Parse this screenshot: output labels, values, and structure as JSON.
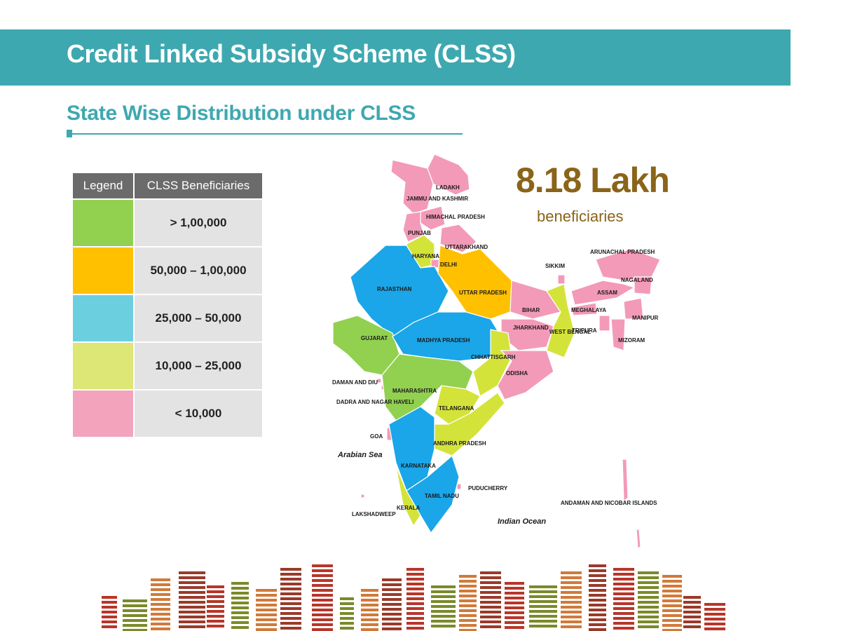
{
  "header": {
    "title": "Credit Linked Subsidy Scheme (CLSS)",
    "subtitle": "State Wise Distribution under CLSS",
    "banner_color": "#3ea8b0"
  },
  "legend": {
    "headers": [
      "Legend",
      "CLSS Beneficiaries"
    ],
    "rows": [
      {
        "color": "#92d050",
        "label": ">  1,00,000"
      },
      {
        "color": "#ffc000",
        "label": "50,000 – 1,00,000"
      },
      {
        "color": "#6ccfe0",
        "label": "25,000 – 50,000"
      },
      {
        "color": "#dce775",
        "label": "10,000 – 25,000"
      },
      {
        "color": "#f4a3bd",
        "label": "< 10,000"
      }
    ]
  },
  "summary": {
    "total": "8.18 Lakh",
    "unit": "beneficiaries"
  },
  "map": {
    "category_colors": {
      "gt_100000": "#92d050",
      "50000_100000": "#ffc000",
      "25000_50000": "#1aa6e8",
      "10000_25000": "#d4e33a",
      "lt_10000": "#f39ab8"
    },
    "regions": [
      {
        "id": "ladakh",
        "label": "LADAKH",
        "category": "lt_10000"
      },
      {
        "id": "jammu-kashmir",
        "label": "JAMMU AND KASHMIR",
        "category": "lt_10000"
      },
      {
        "id": "himachal",
        "label": "HIMACHAL PRADESH",
        "category": "lt_10000"
      },
      {
        "id": "punjab",
        "label": "PUNJAB",
        "category": "lt_10000"
      },
      {
        "id": "uttarakhand",
        "label": "UTTARAKHAND",
        "category": "lt_10000"
      },
      {
        "id": "haryana",
        "label": "HARYANA",
        "category": "10000_25000"
      },
      {
        "id": "delhi",
        "label": "DELHI",
        "category": "lt_10000"
      },
      {
        "id": "rajasthan",
        "label": "RAJASTHAN",
        "category": "25000_50000"
      },
      {
        "id": "uttar-pradesh",
        "label": "UTTAR PRADESH",
        "category": "50000_100000"
      },
      {
        "id": "bihar",
        "label": "BIHAR",
        "category": "lt_10000"
      },
      {
        "id": "sikkim",
        "label": "SIKKIM",
        "category": "lt_10000"
      },
      {
        "id": "arunachal",
        "label": "ARUNACHAL PRADESH",
        "category": "lt_10000"
      },
      {
        "id": "nagaland",
        "label": "NAGALAND",
        "category": "lt_10000"
      },
      {
        "id": "assam",
        "label": "ASSAM",
        "category": "lt_10000"
      },
      {
        "id": "meghalaya",
        "label": "MEGHALAYA",
        "category": "lt_10000"
      },
      {
        "id": "manipur",
        "label": "MANIPUR",
        "category": "lt_10000"
      },
      {
        "id": "tripura",
        "label": "TRIPURA",
        "category": "lt_10000"
      },
      {
        "id": "mizoram",
        "label": "MIZORAM",
        "category": "lt_10000"
      },
      {
        "id": "jharkhand",
        "label": "JHARKHAND",
        "category": "lt_10000"
      },
      {
        "id": "west-bengal",
        "label": "WEST BENGAL",
        "category": "10000_25000"
      },
      {
        "id": "gujarat",
        "label": "GUJARAT",
        "category": "gt_100000"
      },
      {
        "id": "madhya-pradesh",
        "label": "MADHYA  PRADESH",
        "category": "25000_50000"
      },
      {
        "id": "chhattisgarh",
        "label": "CHHATTISGARH",
        "category": "10000_25000"
      },
      {
        "id": "odisha",
        "label": "ODISHA",
        "category": "lt_10000"
      },
      {
        "id": "daman-diu",
        "label": "DAMAN AND DIU",
        "category": "lt_10000"
      },
      {
        "id": "dadra-nagar-haveli",
        "label": "DADRA AND NAGAR HAVELI",
        "category": "lt_10000"
      },
      {
        "id": "maharashtra",
        "label": "MAHARASHTRA",
        "category": "gt_100000"
      },
      {
        "id": "telangana",
        "label": "TELANGANA",
        "category": "10000_25000"
      },
      {
        "id": "goa",
        "label": "GOA",
        "category": "lt_10000"
      },
      {
        "id": "andhra-pradesh",
        "label": "ANDHRA PRADESH",
        "category": "10000_25000"
      },
      {
        "id": "karnataka",
        "label": "KARNATAKA",
        "category": "25000_50000"
      },
      {
        "id": "puducherry",
        "label": "PUDUCHERRY",
        "category": "lt_10000"
      },
      {
        "id": "tamil-nadu",
        "label": "TAMIL NADU",
        "category": "25000_50000"
      },
      {
        "id": "kerala",
        "label": "KERALA",
        "category": "10000_25000"
      },
      {
        "id": "lakshadweep",
        "label": "LAKSHADWEEP",
        "category": "lt_10000"
      },
      {
        "id": "andaman-nicobar",
        "label": "ANDAMAN AND NICOBAR ISLANDS",
        "category": "lt_10000"
      }
    ],
    "seas": {
      "arabian_sea": "Arabian Sea",
      "indian_ocean": "Indian Ocean"
    }
  },
  "decor": {
    "skyline_colors": [
      "#b7362a",
      "#7a8a2a",
      "#d07a3a",
      "#9a3a2a"
    ]
  }
}
